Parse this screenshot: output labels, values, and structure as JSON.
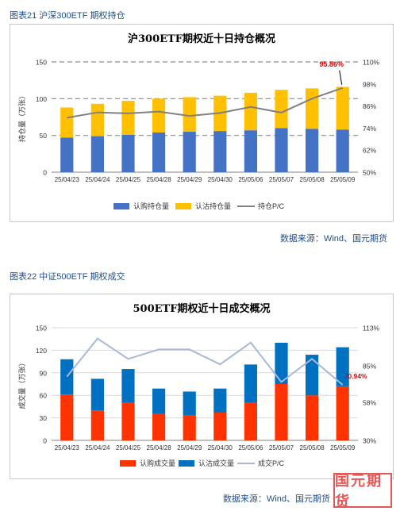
{
  "figure1": {
    "caption": "图表21 沪深300ETF 期权持仓",
    "source": "数据来源：Wind、国元期货"
  },
  "figure2": {
    "caption": "图表22 中证500ETF 期权成交",
    "source": "数据来源：Wind、国元期货"
  },
  "watermark": "国元期货",
  "colors": {
    "blue_bar": "#4472c4",
    "yellow_bar": "#ffc000",
    "grey_line": "#808080",
    "red_bar": "#ff3300",
    "blue_bar2": "#0070c0",
    "light_line": "#a9b8d8",
    "red_label": "#e00000"
  },
  "chart_data": [
    {
      "type": "bar",
      "stacked": true,
      "title": "沪300ETF期权近十日持仓概况",
      "ylabel": "持仓量（万张）",
      "categories": [
        "25/04/23",
        "25/04/24",
        "25/04/25",
        "25/04/28",
        "25/04/29",
        "25/04/30",
        "25/05/06",
        "25/05/07",
        "25/05/08",
        "25/05/09"
      ],
      "ylim": [
        0,
        150
      ],
      "yticks": [
        0,
        50,
        100,
        150
      ],
      "y2lim": [
        0.5,
        1.1
      ],
      "y2ticks": [
        "50%",
        "62%",
        "74%",
        "86%",
        "98%",
        "110%"
      ],
      "y2tick_values": [
        0.5,
        0.62,
        0.74,
        0.86,
        0.98,
        1.1
      ],
      "series": [
        {
          "name": "认购持仓量",
          "values": [
            47,
            49,
            51,
            54,
            55,
            56,
            57,
            60,
            59,
            58
          ]
        },
        {
          "name": "认沽持仓量",
          "values": [
            41,
            44,
            46,
            46,
            47,
            48,
            51,
            52,
            55,
            58
          ]
        },
        {
          "name": "持仓P/C",
          "axis": "secondary",
          "values": [
            0.796,
            0.825,
            0.82,
            0.83,
            0.806,
            0.822,
            0.855,
            0.824,
            0.9,
            0.9586
          ]
        }
      ],
      "annotation": "95.86%",
      "gridlines": "dashed",
      "legend_position": "bottom"
    },
    {
      "type": "bar",
      "stacked": true,
      "title": "500ETF期权近十日成交概况",
      "ylabel": "成交量（万张）",
      "categories": [
        "25/04/23",
        "25/04/24",
        "25/04/25",
        "25/04/28",
        "25/04/29",
        "25/04/30",
        "25/05/06",
        "25/05/07",
        "25/05/08",
        "25/05/09"
      ],
      "ylim": [
        0,
        150
      ],
      "yticks": [
        0,
        30,
        60,
        90,
        120,
        150
      ],
      "y2lim": [
        0.3,
        1.13
      ],
      "y2ticks": [
        "30%",
        "58%",
        "85%",
        "113%"
      ],
      "y2tick_values": [
        0.3,
        0.58,
        0.85,
        1.13
      ],
      "series": [
        {
          "name": "认购成交量",
          "values": [
            61,
            40,
            50,
            35,
            33,
            37,
            50,
            75,
            60,
            72
          ]
        },
        {
          "name": "认沽成交量",
          "values": [
            47,
            42,
            45,
            34,
            32,
            32,
            51,
            55,
            54,
            52
          ]
        },
        {
          "name": "成交P/C",
          "axis": "secondary",
          "values": [
            0.77,
            1.05,
            0.9,
            0.97,
            0.97,
            0.86,
            1.02,
            0.73,
            0.9,
            0.7094
          ]
        }
      ],
      "annotation": "70.94%",
      "gridlines": "solid",
      "legend_position": "bottom"
    }
  ]
}
